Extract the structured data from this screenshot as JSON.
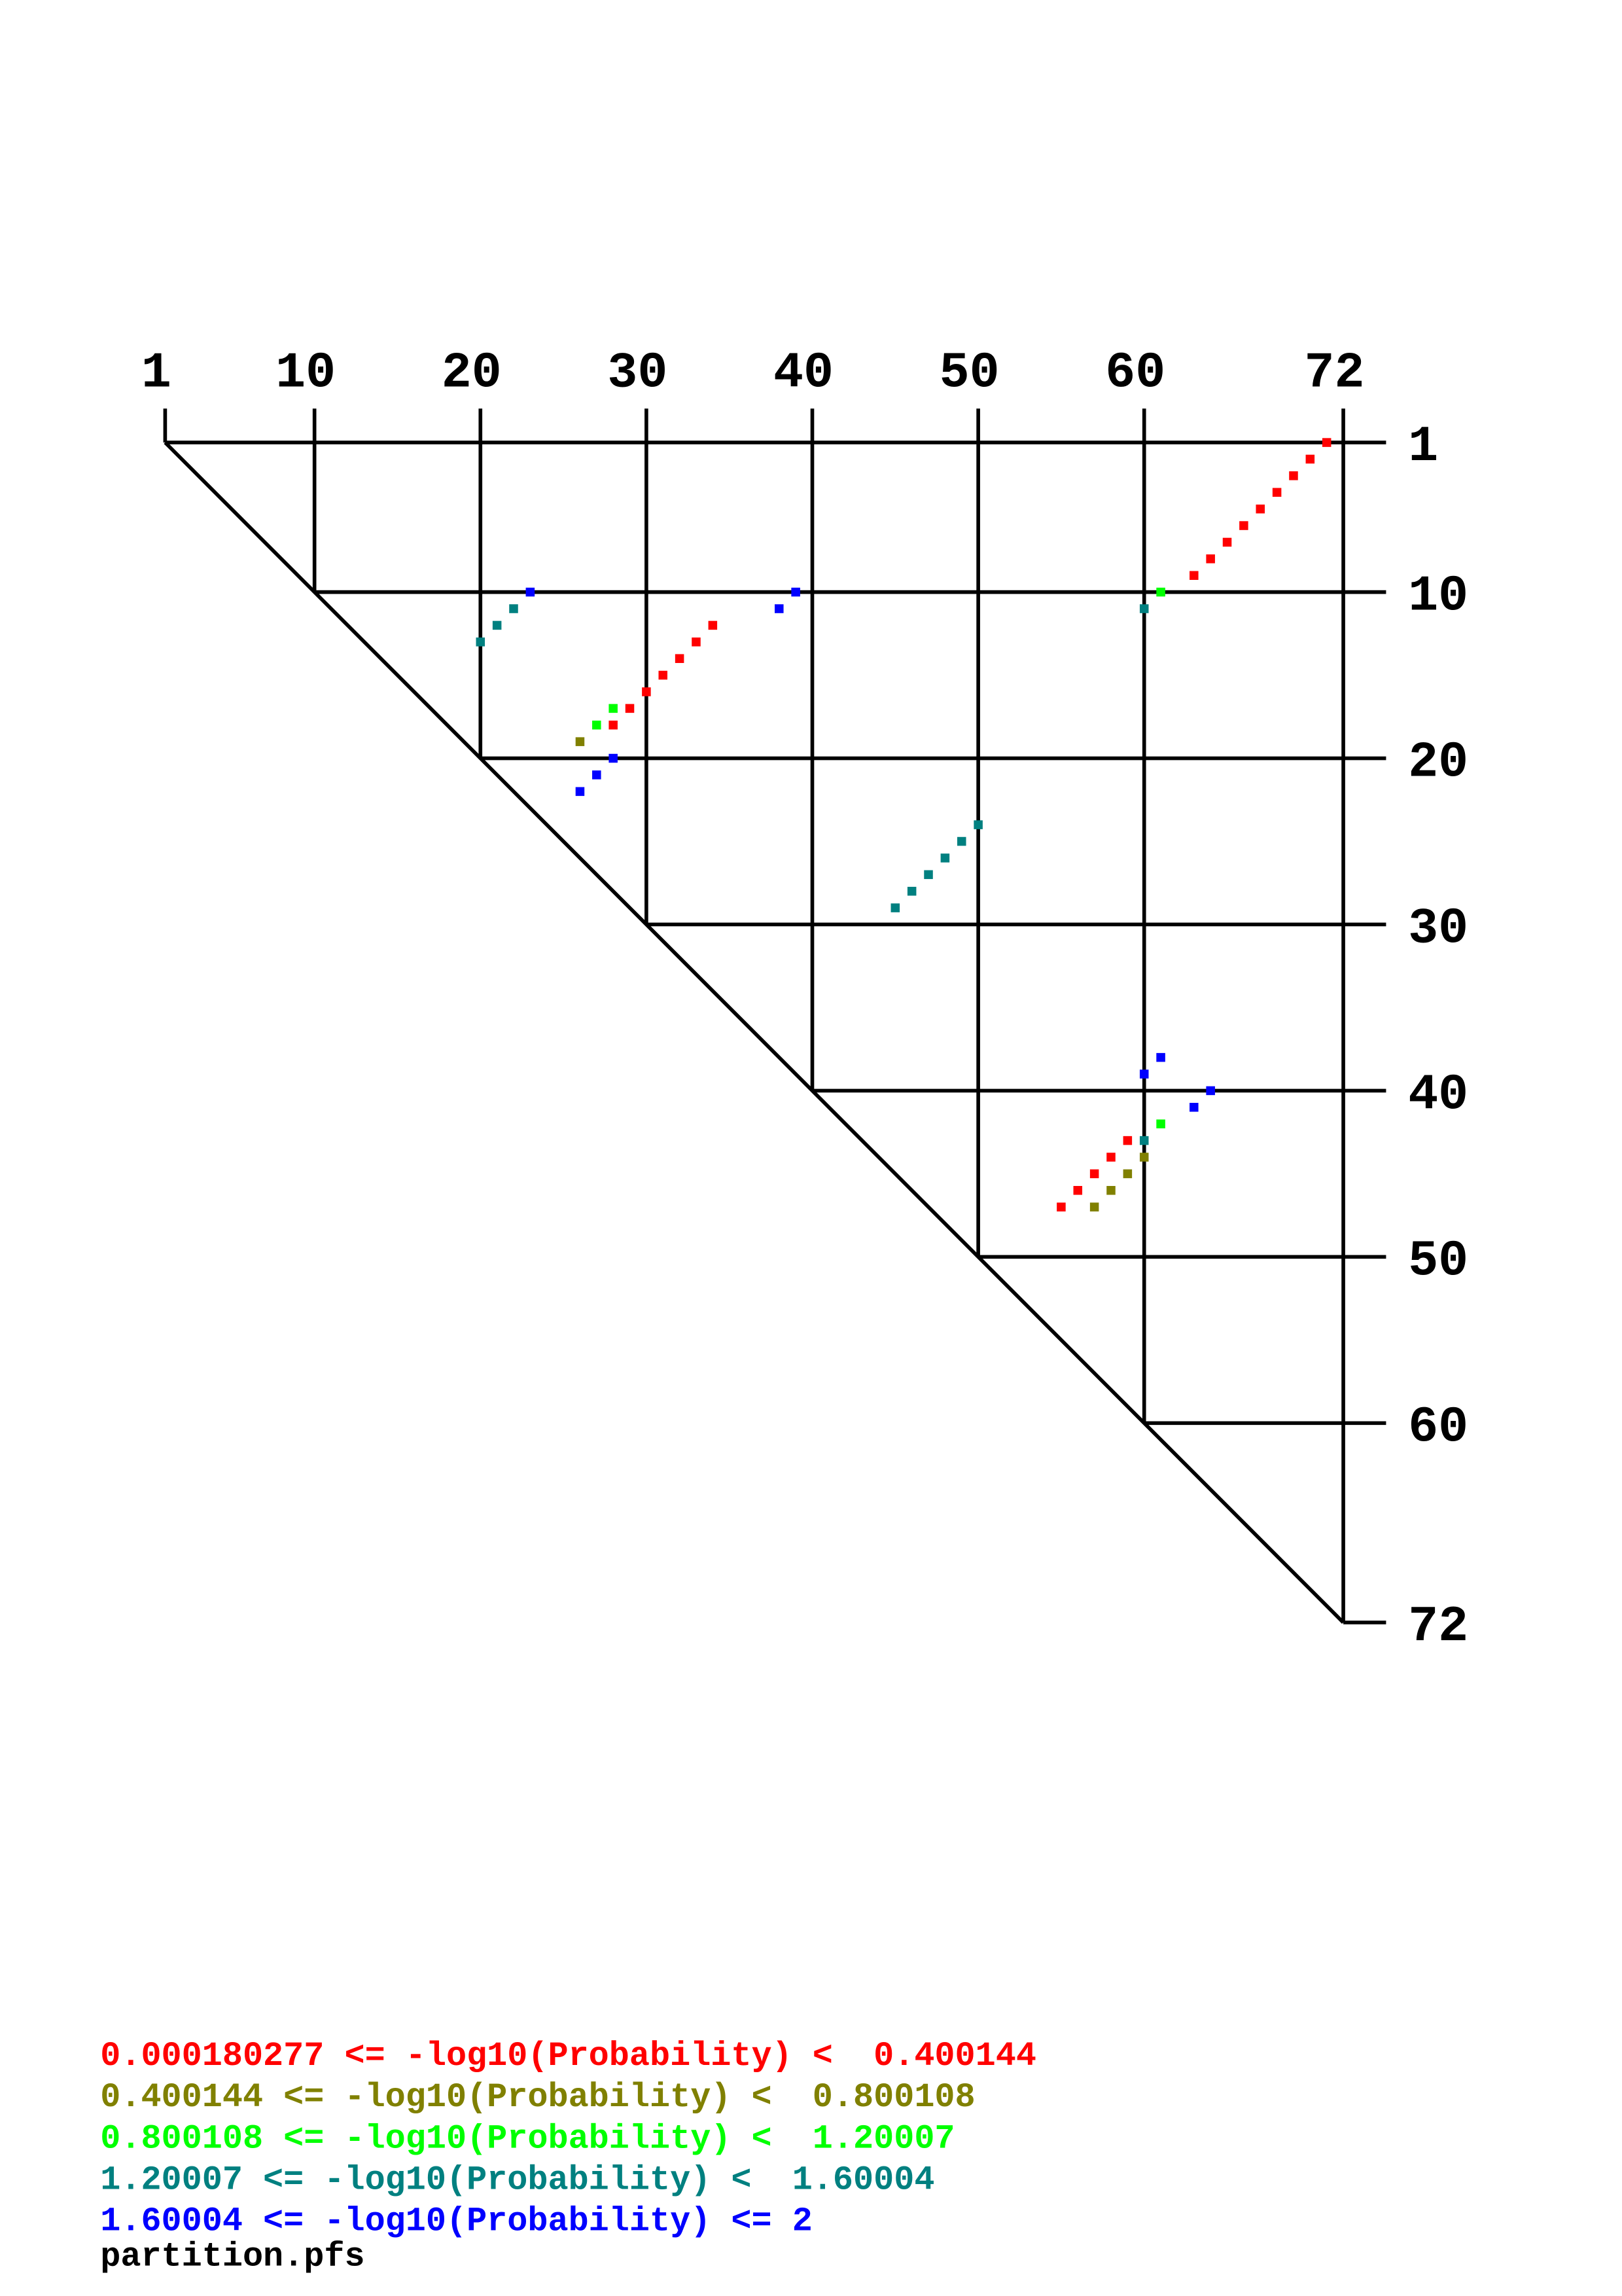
{
  "chart_data": {
    "type": "scatter",
    "title": "partition.pfs",
    "xlim": [
      1,
      72
    ],
    "ylim": [
      1,
      72
    ],
    "y_inverted": true,
    "xticks": [
      1,
      10,
      20,
      30,
      40,
      50,
      60,
      72
    ],
    "yticks": [
      1,
      10,
      20,
      30,
      40,
      50,
      60,
      72
    ],
    "series": [
      {
        "name": "0.000180277 <= -log10(Probability) <  0.400144",
        "color": "#ff0000",
        "x": [
          71,
          70,
          69,
          68,
          67,
          66,
          65,
          64,
          63,
          34,
          33,
          32,
          31,
          30,
          29,
          28,
          59,
          58,
          57,
          56,
          55
        ],
        "values": [
          1,
          2,
          3,
          4,
          5,
          6,
          7,
          8,
          9,
          12,
          13,
          14,
          15,
          16,
          17,
          18,
          43,
          44,
          45,
          46,
          47
        ]
      },
      {
        "name": "0.400144 <= -log10(Probability) <  0.800108",
        "color": "#808000",
        "x": [
          26,
          60,
          59,
          58,
          57
        ],
        "values": [
          19,
          44,
          45,
          46,
          47
        ]
      },
      {
        "name": "0.800108 <= -log10(Probability) <  1.20007",
        "color": "#00ff00",
        "x": [
          61,
          28,
          27,
          61
        ],
        "values": [
          10,
          17,
          18,
          42
        ]
      },
      {
        "name": "1.20007 <= -log10(Probability) <  1.60004",
        "color": "#008080",
        "x": [
          60,
          22,
          21,
          20,
          50,
          49,
          48,
          47,
          46,
          45,
          60
        ],
        "values": [
          11,
          11,
          12,
          13,
          24,
          25,
          26,
          27,
          28,
          29,
          43
        ]
      },
      {
        "name": "1.60004 <= -log10(Probability) <= 2",
        "color": "#0000ff",
        "x": [
          23,
          39,
          38,
          28,
          27,
          26,
          61,
          60,
          64,
          63
        ],
        "values": [
          10,
          10,
          11,
          20,
          21,
          22,
          38,
          39,
          40,
          41
        ]
      }
    ]
  }
}
